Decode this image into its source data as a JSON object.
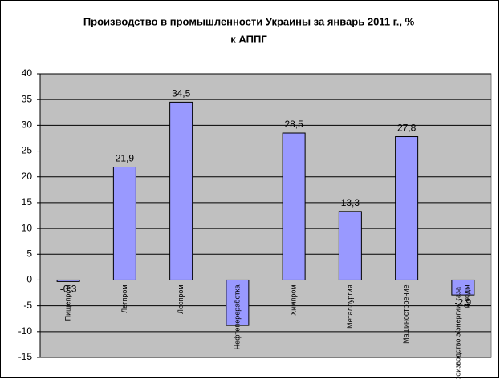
{
  "chart_data": {
    "type": "bar",
    "title": [
      "Производство в промышленности Украины за январь 2011 г., %",
      "к АППГ"
    ],
    "categories": [
      "Пищепром",
      "Легпром",
      "Леспром",
      "Нефтепереработка",
      "Химпром",
      "Металлургия",
      "Машиностроение",
      "Производство э/энергии, газа и воды"
    ],
    "values": [
      -0.3,
      21.9,
      34.5,
      -8.8,
      28.5,
      13.3,
      27.8,
      -2.9
    ],
    "value_labels": [
      "-0,3",
      "21,9",
      "34,5",
      null,
      "28,5",
      "13,3",
      "27,8",
      "-2,9"
    ],
    "color": "#9999ff",
    "ylim": [
      -15,
      40
    ],
    "yticks": [
      -15,
      -10,
      -5,
      0,
      5,
      10,
      15,
      20,
      25,
      30,
      35,
      40
    ],
    "grid": true
  }
}
